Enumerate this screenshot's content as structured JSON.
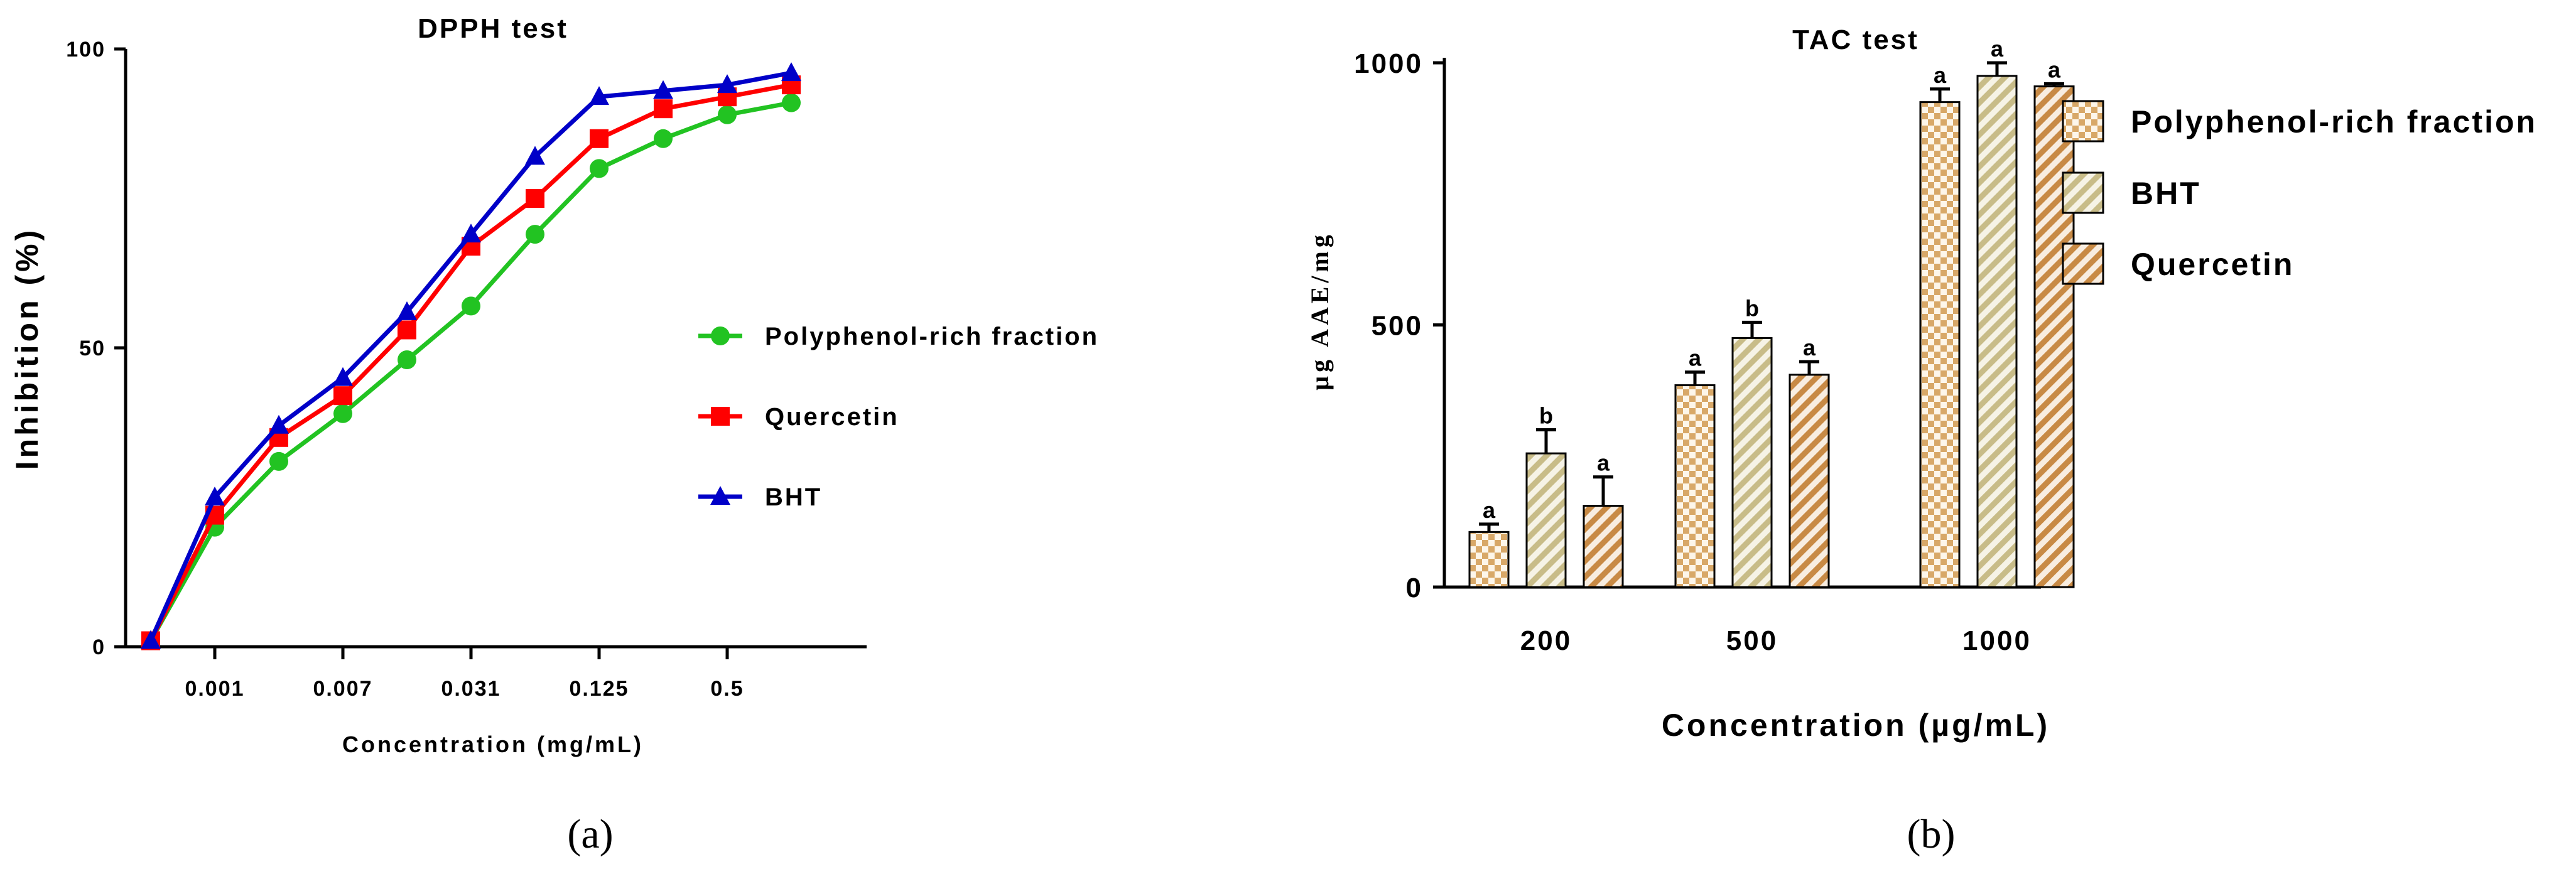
{
  "colors": {
    "polyphenol": "#22c322",
    "quercetin": "#ff0000",
    "bht": "#0000c8",
    "bar_light": "#d8a868",
    "bar_olive": "#c8bc88",
    "bar_orange": "#c88a45"
  },
  "panels": {
    "a_label": "(a)",
    "b_label": "(b)"
  },
  "chart_data": [
    {
      "type": "line",
      "title": "DPPH test",
      "xlabel": "Concentration (mg/mL)",
      "ylabel": "Inhibition (%)",
      "ylim": [
        0,
        100
      ],
      "yticks": [
        "0",
        "50",
        "100"
      ],
      "x_tick_labels": [
        "0.001",
        "0.007",
        "0.031",
        "0.125",
        "0.5"
      ],
      "x_points": 11,
      "legend_position": "right",
      "grid": false,
      "series": [
        {
          "name": "Polyphenol-rich fraction",
          "color": "#22c322",
          "marker": "circle",
          "values": [
            1,
            20,
            31,
            39,
            48,
            57,
            69,
            80,
            85,
            89,
            91
          ]
        },
        {
          "name": "Quercetin",
          "color": "#ff0000",
          "marker": "square",
          "values": [
            1,
            22,
            35,
            42,
            53,
            67,
            75,
            85,
            90,
            92,
            94
          ]
        },
        {
          "name": "BHT",
          "color": "#0000c8",
          "marker": "triangle",
          "values": [
            1,
            25,
            37,
            45,
            56,
            69,
            82,
            92,
            93,
            94,
            96
          ]
        }
      ]
    },
    {
      "type": "bar",
      "title": "TAC test",
      "xlabel": "Concentration (µg/mL)",
      "ylabel": "µg AAE/mg",
      "ylim": [
        0,
        1000
      ],
      "yticks": [
        "0",
        "500",
        "1000"
      ],
      "categories": [
        "200",
        "500",
        "1000"
      ],
      "legend_position": "right",
      "grid": false,
      "series": [
        {
          "name": "Polyphenol-rich fraction",
          "pattern": "checker",
          "values": [
            105,
            385,
            925
          ],
          "errors": [
            15,
            25,
            25
          ],
          "letters": [
            "a",
            "a",
            "a"
          ]
        },
        {
          "name": "BHT",
          "pattern": "stripe-olive",
          "values": [
            255,
            475,
            975
          ],
          "errors": [
            45,
            30,
            25
          ],
          "letters": [
            "b",
            "b",
            "a"
          ]
        },
        {
          "name": "Quercetin",
          "pattern": "stripe-orange",
          "values": [
            155,
            405,
            955
          ],
          "errors": [
            55,
            25,
            5
          ],
          "letters": [
            "a",
            "a",
            "a"
          ]
        }
      ]
    }
  ]
}
